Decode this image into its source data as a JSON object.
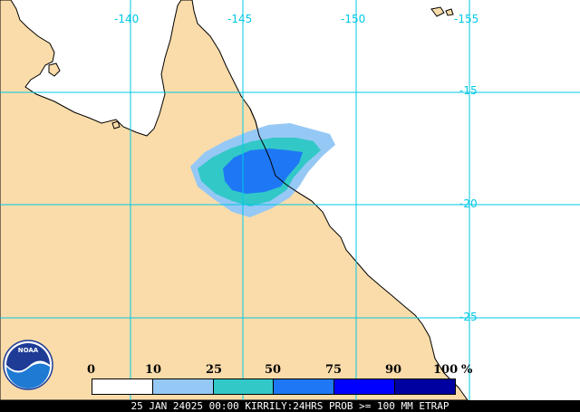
{
  "map": {
    "longitude_labels": [
      "-140",
      "-145",
      "-150",
      "-155"
    ],
    "latitude_labels": [
      "-15",
      "-20",
      "-25"
    ],
    "colors": {
      "land": "#fadcaa",
      "ocean": "#ffffff",
      "grid": "#00c8e6",
      "coast": "#000000"
    }
  },
  "legend": {
    "labels": [
      "0",
      "10",
      "25",
      "50",
      "75",
      "90",
      "100",
      "%"
    ],
    "swatch_colors": [
      "#ffffff",
      "#96c8f5",
      "#32c8c8",
      "#1e78f5",
      "#0000ff",
      "#0000a0"
    ]
  },
  "caption": "25 JAN 24025 00:00 KIRRILY:24HRS PROB >= 100 MM ETRAP",
  "logo": {
    "text": "NOAA",
    "colors": {
      "top": "#1e3c96",
      "bottom": "#1e7ad2",
      "wave": "#ffffff"
    }
  }
}
